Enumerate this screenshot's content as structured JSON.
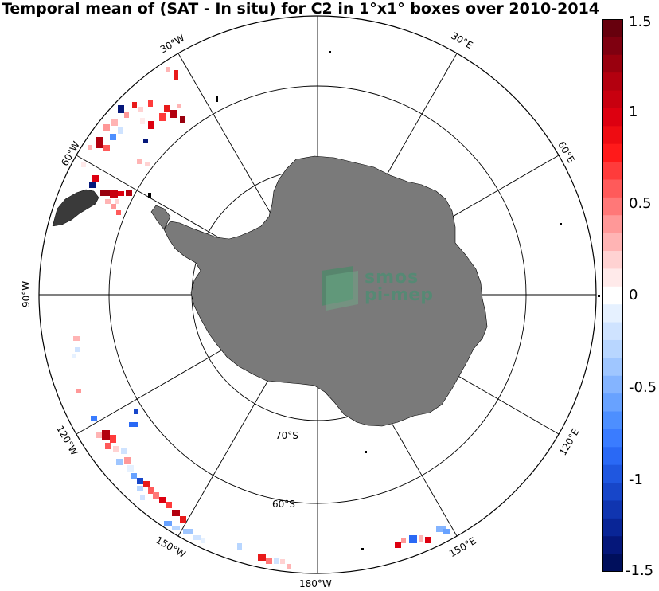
{
  "title": "Temporal mean of (SAT - In situ) for C2 in 1°x1° boxes over 2010-2014",
  "colorbar": {
    "ticks": [
      "1.5",
      "1",
      "0.5",
      "0",
      "-0.5",
      "-1",
      "-1.5"
    ],
    "range": [
      -1.5,
      1.5
    ],
    "colors_top_to_bottom": [
      "#67000d",
      "#7f0010",
      "#99000e",
      "#b3000f",
      "#c8000f",
      "#dd0010",
      "#ee0c12",
      "#ff1a1a",
      "#ff3b3b",
      "#ff5a5a",
      "#ff7878",
      "#ff9898",
      "#ffb4b4",
      "#ffd2d2",
      "#ffeaea",
      "#ffffff",
      "#e6f1ff",
      "#cfe3ff",
      "#b8d6ff",
      "#9fc6ff",
      "#84b4ff",
      "#68a2ff",
      "#4d8fff",
      "#3a7cff",
      "#2a69f5",
      "#1f57e0",
      "#1746c9",
      "#1035b0",
      "#092596",
      "#05177a",
      "#000f5c"
    ]
  },
  "map": {
    "projection": "south-polar-stereographic",
    "lon_labels": [
      "30°W",
      "30°E",
      "60°E",
      "60°W",
      "90°W",
      "120°E",
      "120°W",
      "150°W",
      "150°E",
      "180°W"
    ],
    "lat_labels": [
      "70°S",
      "60°S"
    ],
    "land_color": "#7a7a7a"
  },
  "logo": {
    "line1": "smos",
    "line2": "pi-mep"
  }
}
